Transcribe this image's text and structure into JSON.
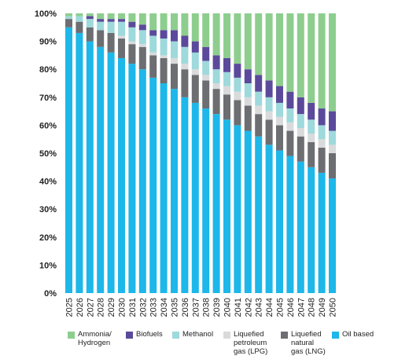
{
  "chart_data": {
    "type": "bar",
    "stacked": true,
    "title": "",
    "xlabel": "",
    "ylabel": "",
    "ylim": [
      0,
      100
    ],
    "yticks": [
      "0%",
      "10%",
      "20%",
      "30%",
      "40%",
      "50%",
      "60%",
      "70%",
      "80%",
      "90%",
      "100%"
    ],
    "grid": false,
    "legend_position": "bottom",
    "categories": [
      "2025",
      "2026",
      "2027",
      "2028",
      "2029",
      "2030",
      "2031",
      "2032",
      "2033",
      "2034",
      "2035",
      "2036",
      "2037",
      "2038",
      "2039",
      "2040",
      "2041",
      "2042",
      "2043",
      "2044",
      "2045",
      "2046",
      "2047",
      "2048",
      "2049",
      "2050"
    ],
    "series": [
      {
        "name": "Oil based",
        "color": "#1db7ea",
        "values": [
          95,
          93,
          90,
          88,
          86,
          84,
          82,
          80,
          77,
          75,
          73,
          70,
          68,
          66,
          64,
          62,
          60,
          58,
          56,
          53,
          51,
          49,
          47,
          45,
          43,
          41
        ]
      },
      {
        "name": "Liquefied natural gas (LNG)",
        "color": "#6d6e71",
        "values": [
          3,
          4,
          5,
          6,
          7,
          7,
          7,
          8,
          8,
          9,
          9,
          10,
          10,
          10,
          9,
          9,
          9,
          9,
          8,
          9,
          9,
          9,
          9,
          9,
          9,
          9
        ]
      },
      {
        "name": "Liquefied petroleum gas (LPG)",
        "color": "#d9dadb",
        "values": [
          0,
          0,
          0,
          0,
          0,
          1,
          1,
          1,
          1,
          1,
          2,
          2,
          2,
          2,
          2,
          3,
          3,
          3,
          3,
          3,
          3,
          3,
          3,
          3,
          3,
          3
        ]
      },
      {
        "name": "Methanol",
        "color": "#9ed9dc",
        "values": [
          1,
          2,
          3,
          3,
          4,
          5,
          5,
          5,
          6,
          6,
          6,
          6,
          6,
          5,
          5,
          5,
          5,
          5,
          5,
          5,
          5,
          5,
          5,
          5,
          5,
          5
        ]
      },
      {
        "name": "Biofuels",
        "color": "#5b4a9b",
        "values": [
          0,
          0,
          1,
          1,
          1,
          1,
          2,
          2,
          2,
          3,
          4,
          4,
          4,
          5,
          5,
          5,
          5,
          5,
          6,
          6,
          6,
          6,
          6,
          6,
          6,
          7
        ]
      },
      {
        "name": "Ammonia/ Hydrogen",
        "color": "#8dce8e",
        "values": [
          1,
          1,
          1,
          2,
          2,
          2,
          3,
          4,
          6,
          6,
          6,
          8,
          10,
          12,
          15,
          16,
          18,
          20,
          22,
          24,
          26,
          28,
          30,
          32,
          34,
          35
        ]
      }
    ]
  },
  "legend": [
    {
      "label": "Ammonia/\nHydrogen",
      "color": "#8dce8e"
    },
    {
      "label": "Biofuels",
      "color": "#5b4a9b"
    },
    {
      "label": "Methanol",
      "color": "#9ed9dc"
    },
    {
      "label": "Liquefied\npetroleum\ngas (LPG)",
      "color": "#d9dadb"
    },
    {
      "label": "Liquefied\nnatural\ngas (LNG)",
      "color": "#6d6e71"
    },
    {
      "label": "Oil  based",
      "color": "#1db7ea"
    }
  ]
}
